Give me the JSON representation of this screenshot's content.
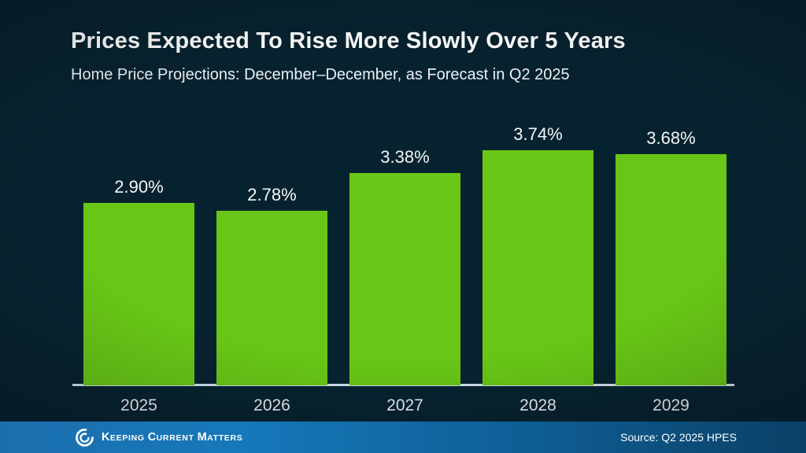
{
  "slide": {
    "title": "Prices Expected To Rise More Slowly Over 5 Years",
    "subtitle": "Home Price Projections: December–December, as Forecast in Q2 2025"
  },
  "chart_data": {
    "type": "bar",
    "title": "Prices Expected To Rise More Slowly Over 5 Years",
    "subtitle": "Home Price Projections: December–December, as Forecast in Q2 2025",
    "categories": [
      "2025",
      "2026",
      "2027",
      "2028",
      "2029"
    ],
    "values": [
      2.9,
      2.78,
      3.38,
      3.74,
      3.68
    ],
    "labels": [
      "2.90%",
      "2.78%",
      "3.38%",
      "3.74%",
      "3.68%"
    ],
    "ylim": [
      0,
      4.25
    ],
    "grid": false,
    "legend": false,
    "bar_color": "#68c616",
    "axis_color": "#cfe0ea",
    "label_color": "#f2f7f9"
  },
  "footer": {
    "brand": "Keeping Current Matters",
    "source": "Source: Q2 2025 HPES",
    "gradient_left": "#1678ba",
    "gradient_right": "#0a4066"
  },
  "colors": {
    "background": "#07222f",
    "title_text": "#ffffff",
    "bar_green": "#68c616",
    "footer_blue": "#1678ba"
  }
}
